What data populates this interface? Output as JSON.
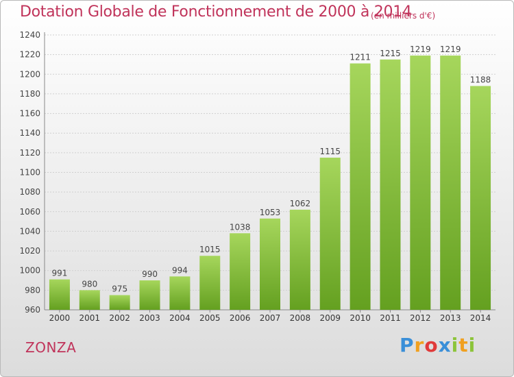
{
  "header": {
    "title": "Dotation Globale de Fonctionnement de 2000 à 2014",
    "unit": "(en milliers d'€)"
  },
  "footer": {
    "commune": "ZONZA",
    "logo_text": "Proxiti",
    "logo_letters": [
      {
        "ch": "P",
        "color": "#3a8fd8"
      },
      {
        "ch": "r",
        "color": "#f0a020"
      },
      {
        "ch": "o",
        "color": "#e03a3a"
      },
      {
        "ch": "x",
        "color": "#3a8fd8"
      },
      {
        "ch": "i",
        "color": "#8cc43a"
      },
      {
        "ch": "t",
        "color": "#f0a020"
      },
      {
        "ch": "i",
        "color": "#8cc43a"
      }
    ]
  },
  "colors": {
    "bar_top": "#a6d65c",
    "bar_bottom": "#64a020",
    "title": "#c0335a",
    "grid": "#cfcfcf"
  },
  "chart_data": {
    "type": "bar",
    "title": "Dotation Globale de Fonctionnement de 2000 à 2014",
    "subtitle": "(en milliers d'€)",
    "xlabel": "",
    "ylabel": "",
    "categories": [
      "2000",
      "2001",
      "2002",
      "2003",
      "2004",
      "2005",
      "2006",
      "2007",
      "2008",
      "2009",
      "2010",
      "2011",
      "2012",
      "2013",
      "2014"
    ],
    "values": [
      991,
      980,
      975,
      990,
      994,
      1015,
      1038,
      1053,
      1062,
      1115,
      1211,
      1215,
      1219,
      1219,
      1188
    ],
    "ylim": [
      960,
      1240
    ],
    "yticks": [
      960,
      980,
      1000,
      1020,
      1040,
      1060,
      1080,
      1100,
      1120,
      1140,
      1160,
      1180,
      1200,
      1220,
      1240
    ],
    "grid": true,
    "legend": "none"
  }
}
